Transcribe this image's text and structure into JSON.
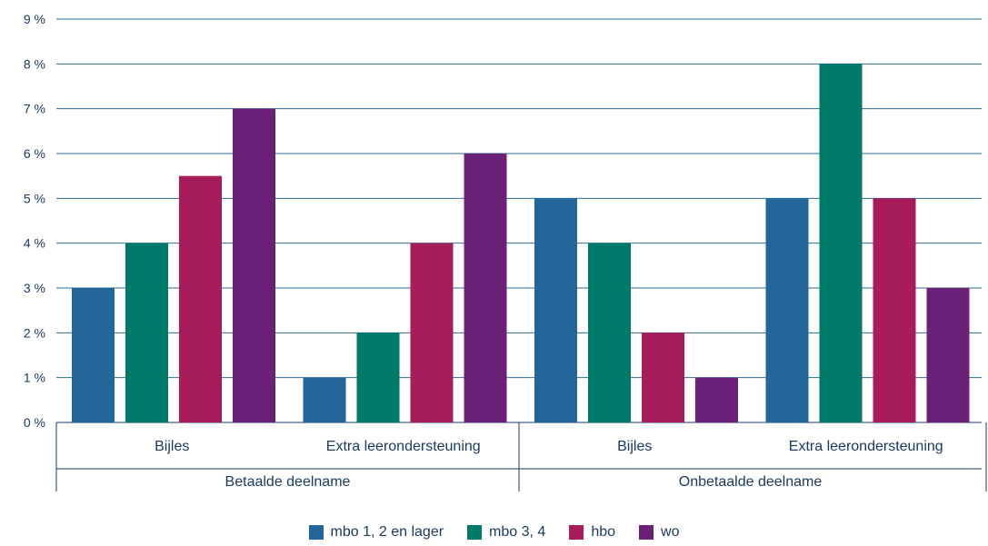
{
  "chart_data": {
    "type": "bar",
    "ylim": [
      0,
      9
    ],
    "yticks": [
      "0 %",
      "1 %",
      "2 %",
      "3 %",
      "4 %",
      "5 %",
      "6 %",
      "7 %",
      "8 %",
      "9 %"
    ],
    "groups": [
      {
        "label": "Betaalde deelname",
        "categories": [
          "Bijles",
          "Extra leerondersteuning"
        ]
      },
      {
        "label": "Onbetaalde deelname",
        "categories": [
          "Bijles",
          "Extra leerondersteuning"
        ]
      }
    ],
    "categories": [
      "Betaalde deelname - Bijles",
      "Betaalde deelname - Extra leerondersteuning",
      "Onbetaalde deelname - Bijles",
      "Onbetaalde deelname - Extra leerondersteuning"
    ],
    "series": [
      {
        "name": "mbo 1, 2 en lager",
        "color": "#236699",
        "values": [
          3,
          1,
          5,
          5
        ]
      },
      {
        "name": "mbo 3, 4",
        "color": "#007a68",
        "values": [
          4,
          2,
          4,
          8
        ]
      },
      {
        "name": "hbo",
        "color": "#a71c5a",
        "values": [
          5.5,
          4,
          2,
          5
        ]
      },
      {
        "name": "wo",
        "color": "#6c2178",
        "values": [
          7,
          6,
          1,
          3
        ]
      }
    ],
    "grid": true,
    "legend_position": "bottom"
  }
}
